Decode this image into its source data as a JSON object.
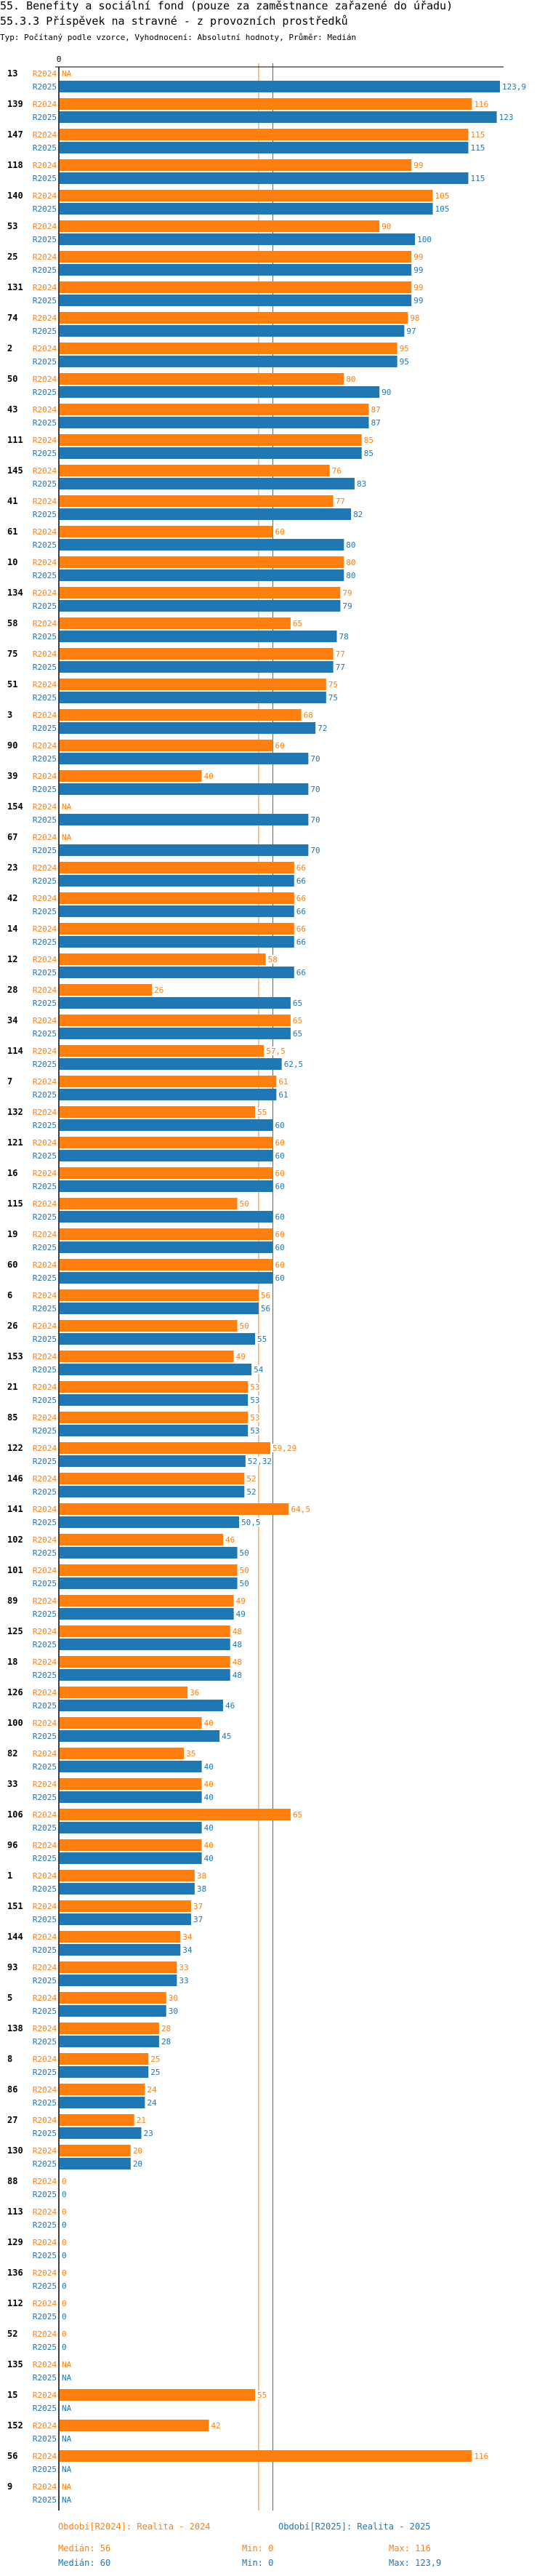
{
  "header": {
    "title": "55. Benefity a sociální fond (pouze za zaměstnance zařazené do úřadu)",
    "subtitle": "55.3.3 Příspěvek na stravné - z provozních prostředků",
    "meta": "Typ: Počítaný podle vzorce, Vyhodnocení: Absolutní hodnoty, Průměr: Medián"
  },
  "chart_data": {
    "type": "bar",
    "orientation": "horizontal",
    "axis_zero_label": "0",
    "xlim": [
      0,
      123.9
    ],
    "na_label": "NA",
    "colors": {
      "R2024": "#ff7f0e",
      "R2025": "#1f77b4"
    },
    "series": [
      {
        "name": "R2024",
        "legend": "Období[R2024]: Realita - 2024",
        "median": 56,
        "median_label": "Medián: 56",
        "min_label": "Min: 0",
        "max_label": "Max: 116"
      },
      {
        "name": "R2025",
        "legend": "Období[R2025]: Realita - 2025",
        "median": 60,
        "median_label": "Medián: 60",
        "min_label": "Min: 0",
        "max_label": "Max: 123,9"
      }
    ],
    "categories": [
      "13",
      "139",
      "147",
      "118",
      "140",
      "53",
      "25",
      "131",
      "74",
      "2",
      "50",
      "43",
      "111",
      "145",
      "41",
      "61",
      "10",
      "134",
      "58",
      "75",
      "51",
      "3",
      "90",
      "39",
      "154",
      "67",
      "23",
      "42",
      "14",
      "12",
      "28",
      "34",
      "114",
      "7",
      "132",
      "121",
      "16",
      "115",
      "19",
      "60",
      "6",
      "26",
      "153",
      "21",
      "85",
      "122",
      "146",
      "141",
      "102",
      "101",
      "89",
      "125",
      "18",
      "126",
      "100",
      "82",
      "33",
      "106",
      "96",
      "1",
      "151",
      "144",
      "93",
      "5",
      "138",
      "8",
      "86",
      "27",
      "130",
      "88",
      "113",
      "129",
      "136",
      "112",
      "52",
      "135",
      "15",
      "152",
      "56",
      "9"
    ],
    "values": {
      "R2024": [
        null,
        116,
        115,
        99,
        105,
        90,
        99,
        99,
        98,
        95,
        80,
        87,
        85,
        76,
        77,
        60,
        80,
        79,
        65,
        77,
        75,
        68,
        60,
        40,
        null,
        null,
        66,
        66,
        66,
        58,
        26,
        65,
        57.5,
        61,
        55,
        60,
        60,
        50,
        60,
        60,
        56,
        50,
        49,
        53,
        53,
        59.29,
        52,
        64.5,
        46,
        50,
        49,
        48,
        48,
        36,
        40,
        35,
        40,
        65,
        40,
        38,
        37,
        34,
        33,
        30,
        28,
        25,
        24,
        21,
        20,
        0,
        0,
        0,
        0,
        0,
        0,
        null,
        55,
        42,
        116,
        null
      ],
      "R2025": [
        123.9,
        123,
        115,
        115,
        105,
        100,
        99,
        99,
        97,
        95,
        90,
        87,
        85,
        83,
        82,
        80,
        80,
        79,
        78,
        77,
        75,
        72,
        70,
        70,
        70,
        70,
        66,
        66,
        66,
        66,
        65,
        65,
        62.5,
        61,
        60,
        60,
        60,
        60,
        60,
        60,
        56,
        55,
        54,
        53,
        53,
        52.32,
        52,
        50.5,
        50,
        50,
        49,
        48,
        48,
        46,
        45,
        40,
        40,
        40,
        40,
        38,
        37,
        34,
        33,
        30,
        28,
        25,
        24,
        23,
        20,
        0,
        0,
        0,
        0,
        0,
        0,
        null,
        null,
        null,
        null,
        null
      ]
    }
  }
}
